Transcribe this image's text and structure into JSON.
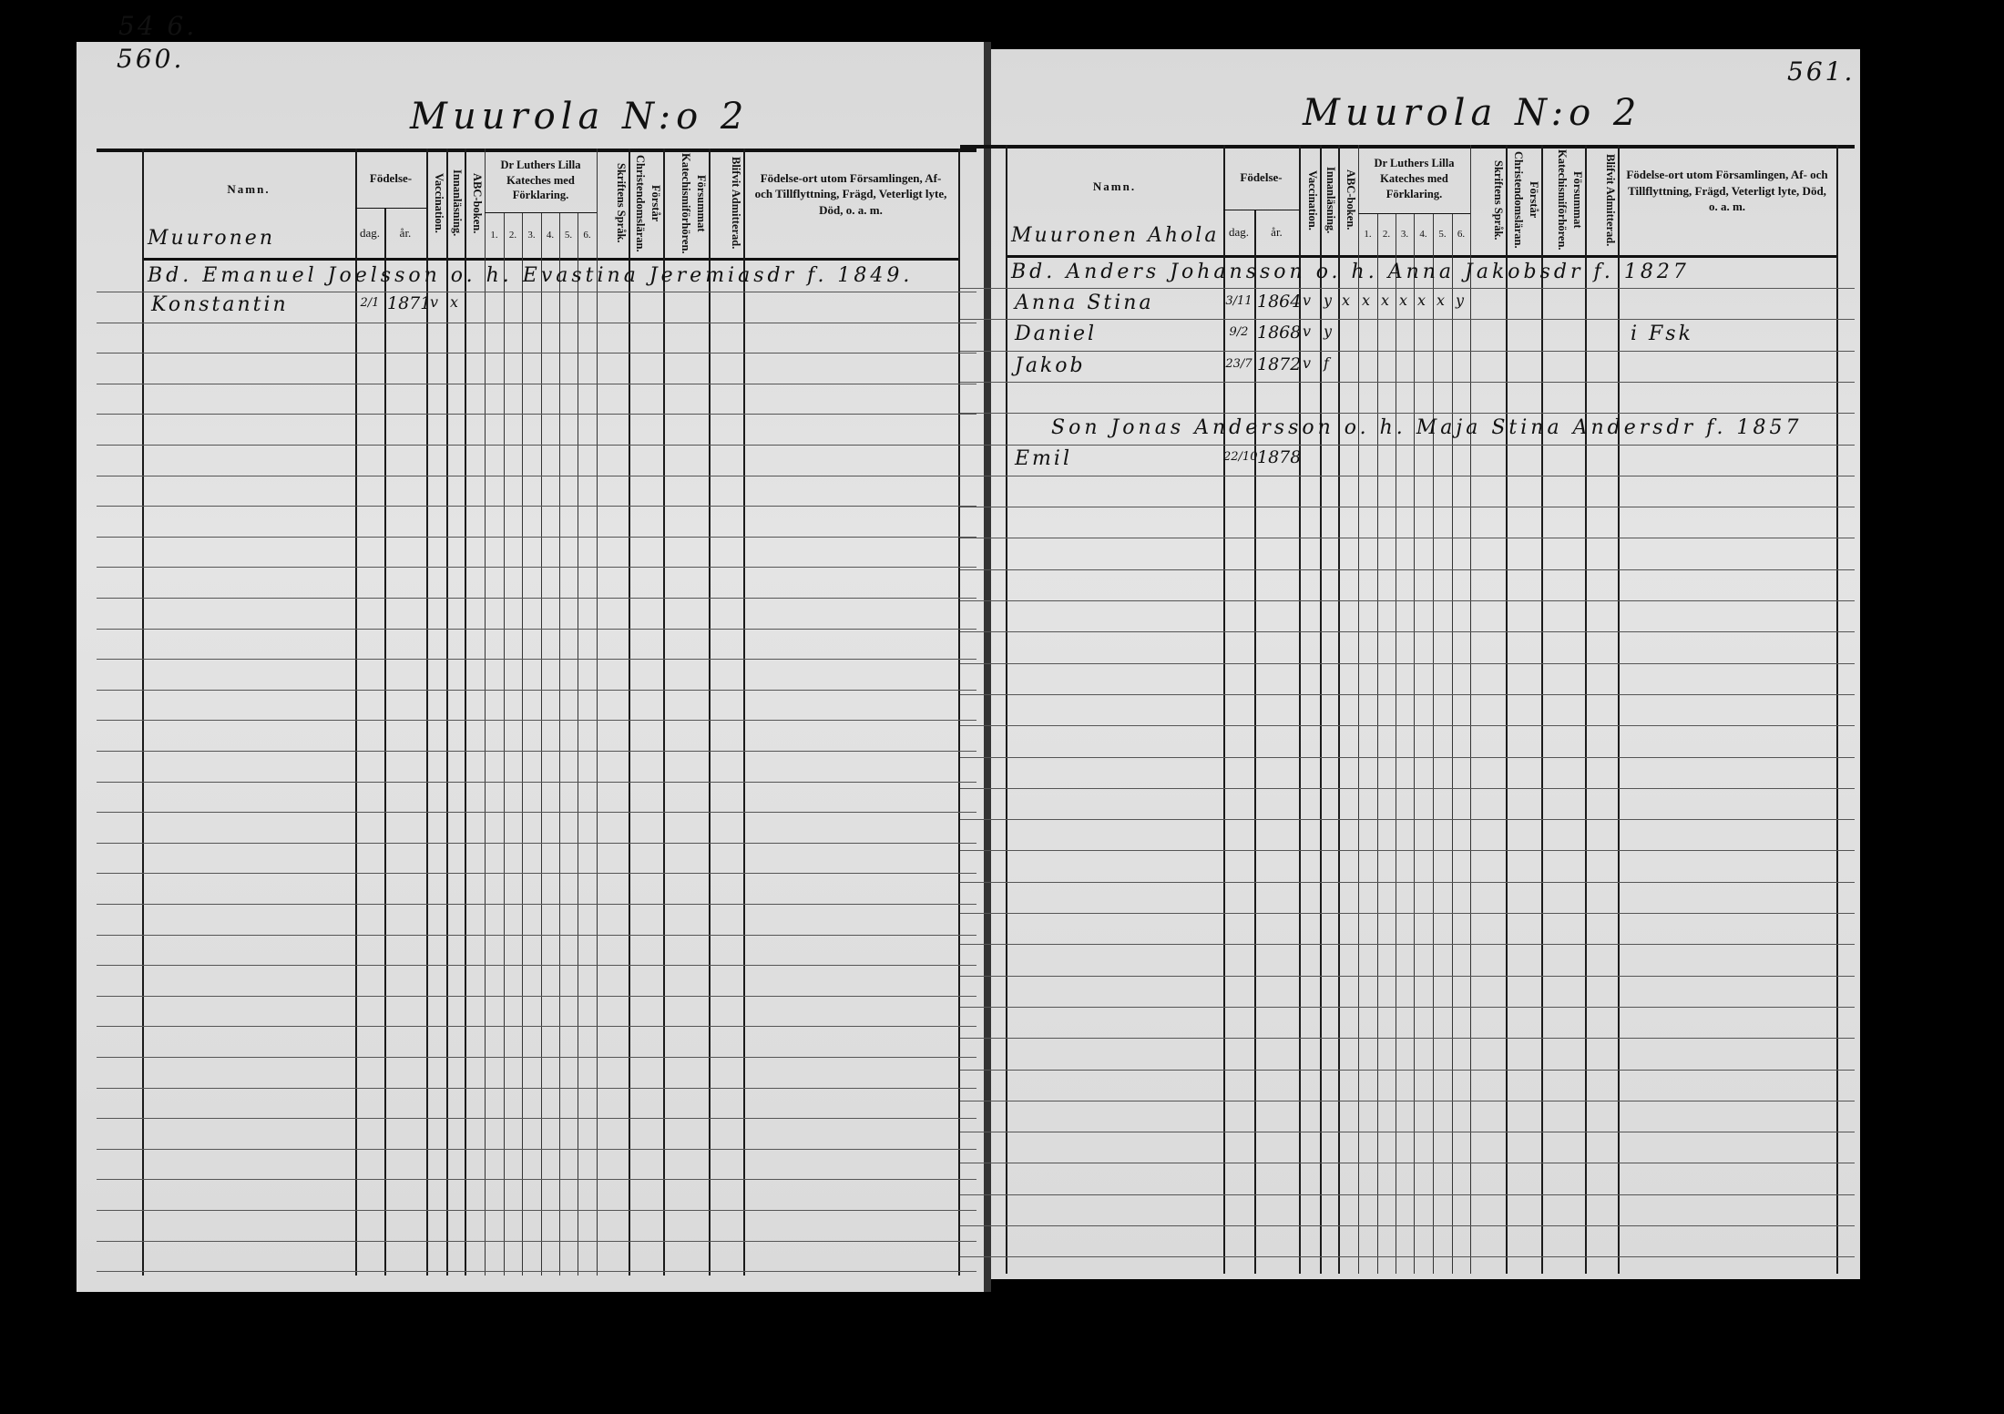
{
  "left_page": {
    "page_numbers": [
      "54 6.",
      "560."
    ],
    "title": "Muurola N:o 2",
    "village": "Muuronen",
    "entries": [
      {
        "text": "Bd. Emanuel Joelsson o. h. Evastina Jeremiasdr f. 1849."
      },
      {
        "name": "Konstantin",
        "day": "2/1",
        "year": "1871",
        "marks": [
          "v",
          "x"
        ]
      }
    ]
  },
  "right_page": {
    "page_number": "561.",
    "title": "Muurola N:o 2",
    "village": "Muuronen Ahola",
    "entries": [
      {
        "text": "Bd. Anders Johansson o. h. Anna Jakobsdr f. 1827"
      },
      {
        "name": "Anna Stina",
        "day": "3/11",
        "year": "1864",
        "marks": [
          "v",
          "y",
          "x",
          "x",
          "x",
          "x",
          "x",
          "x",
          "y"
        ]
      },
      {
        "name": "Daniel",
        "day": "9/2",
        "year": "1868",
        "marks": [
          "v",
          "y"
        ],
        "note": "i Fsk"
      },
      {
        "name": "Jakob",
        "day": "23/7",
        "year": "1872",
        "marks": [
          "v",
          "f"
        ]
      },
      {
        "text": "Son Jonas Andersson o. h. Maja Stina Andersdr f. 1857"
      },
      {
        "name": "Emil",
        "day": "22/10",
        "year": "1878"
      }
    ]
  },
  "headers": {
    "namn": "Namn.",
    "fodelse": "Födelse-",
    "dag": "dag.",
    "ar": "år.",
    "vaccination": "Vaccination.",
    "innanlasning": "Innanläsning.",
    "abc": "ABC-boken.",
    "katekes": "Dr Luthers Lilla Kateches med Förklaring.",
    "kat_cols": [
      "1.",
      "2.",
      "3.",
      "4.",
      "5.",
      "6."
    ],
    "skriftens": "Skriftens Språk.",
    "forstar": "Förstår Christendomsläran.",
    "forsummat": "Försummat Katechismiförhören.",
    "blifvit": "Blifvit Admitterad.",
    "fodelseort": "Födelse-ort utom Församlingen, Af- och Tillflyttning, Frägd, Veterligt lyte, Död, o. a. m."
  }
}
